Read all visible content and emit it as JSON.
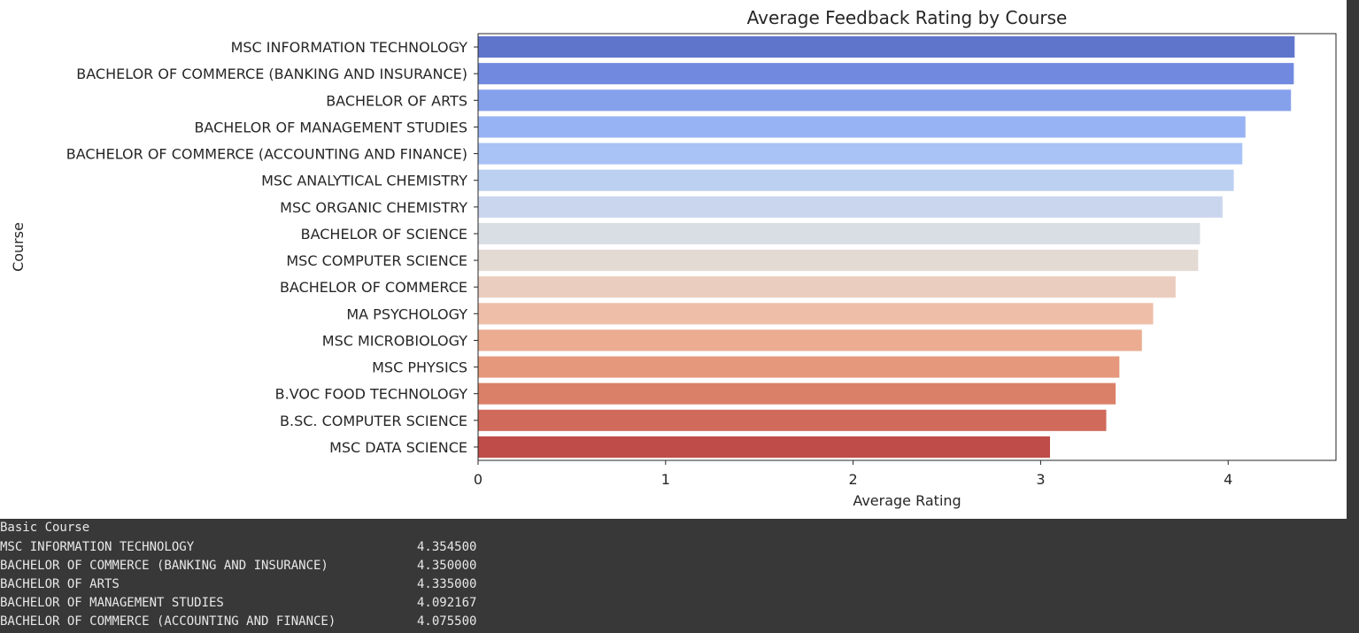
{
  "chart_data": {
    "type": "bar",
    "orientation": "horizontal",
    "title": "Average Feedback Rating by Course",
    "xlabel": "Average Rating",
    "ylabel": "Course",
    "xlim": [
      0,
      4.575
    ],
    "xticks": [
      "0",
      "1",
      "2",
      "3",
      "4"
    ],
    "grid": false,
    "palette": "coolwarm",
    "categories": [
      "MSC INFORMATION TECHNOLOGY",
      "BACHELOR OF COMMERCE (BANKING AND INSURANCE)",
      "BACHELOR OF ARTS",
      "BACHELOR OF MANAGEMENT STUDIES",
      "BACHELOR OF COMMERCE (ACCOUNTING AND FINANCE)",
      "MSC ANALYTICAL CHEMISTRY",
      "MSC ORGANIC CHEMISTRY",
      "BACHELOR OF SCIENCE",
      "MSC COMPUTER SCIENCE",
      "BACHELOR OF COMMERCE",
      "MA PSYCHOLOGY",
      "MSC MICROBIOLOGY",
      "MSC PHYSICS",
      "B.VOC FOOD TECHNOLOGY",
      "B.SC. COMPUTER SCIENCE",
      "MSC DATA SCIENCE"
    ],
    "values": [
      4.3545,
      4.35,
      4.335,
      4.092167,
      4.0755,
      4.03,
      3.97,
      3.85,
      3.84,
      3.72,
      3.6,
      3.54,
      3.42,
      3.4,
      3.35,
      3.05
    ],
    "colors": [
      "#5f74cb",
      "#7189de",
      "#86a1ec",
      "#98b3f3",
      "#a9c3f7",
      "#bcd0f1",
      "#cad6ee",
      "#d9dde4",
      "#e4dad4",
      "#ebcdbf",
      "#eebea8",
      "#ebac92",
      "#e5987c",
      "#db8068",
      "#d06a5b",
      "#bf4c49"
    ]
  },
  "console": {
    "header": "Basic Course",
    "rows": [
      {
        "name": "MSC INFORMATION TECHNOLOGY",
        "value": "4.354500"
      },
      {
        "name": "BACHELOR OF COMMERCE (BANKING AND INSURANCE)",
        "value": "4.350000"
      },
      {
        "name": "BACHELOR OF ARTS",
        "value": "4.335000"
      },
      {
        "name": "BACHELOR OF MANAGEMENT STUDIES",
        "value": "4.092167"
      },
      {
        "name": "BACHELOR OF COMMERCE (ACCOUNTING AND FINANCE)",
        "value": "4.075500"
      }
    ]
  }
}
